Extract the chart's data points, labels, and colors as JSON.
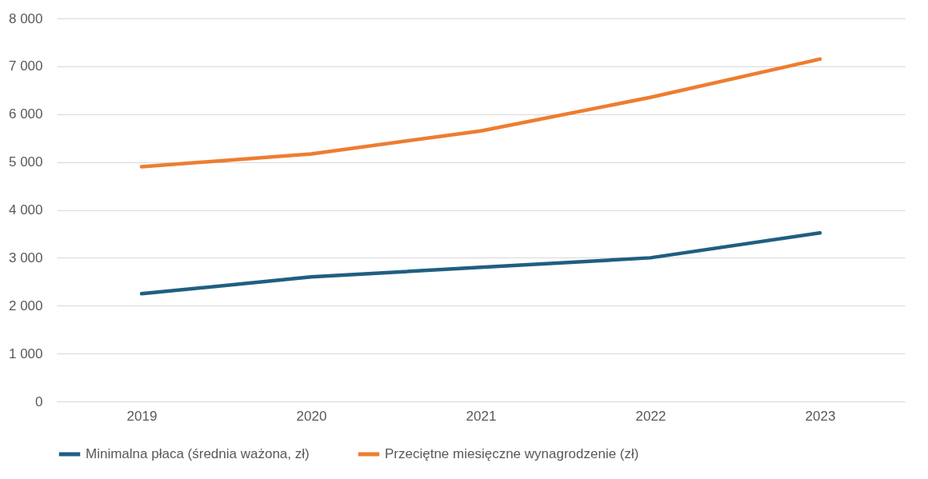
{
  "chart_data": {
    "type": "line",
    "categories": [
      "2019",
      "2020",
      "2021",
      "2022",
      "2023"
    ],
    "series": [
      {
        "name": "Minimalna płaca (średnia ważona, zł)",
        "color": "#1f5f80",
        "values": [
          2250,
          2600,
          2800,
          3000,
          3520
        ]
      },
      {
        "name": "Przeciętne miesięczne wynagrodzenie (zł)",
        "color": "#ed7d31",
        "values": [
          4900,
          5170,
          5650,
          6350,
          7150
        ]
      }
    ],
    "ylim": [
      0,
      8000
    ],
    "yticks": [
      0,
      {
        "value": 1000,
        "label": "1 000"
      },
      {
        "value": 2000,
        "label": "2 000"
      },
      {
        "value": 3000,
        "label": "3 000"
      },
      {
        "value": 4000,
        "label": "4 000"
      },
      {
        "value": 5000,
        "label": "5 000"
      },
      {
        "value": 6000,
        "label": "6 000"
      },
      {
        "value": 7000,
        "label": "7 000"
      },
      {
        "value": 8000,
        "label": "8 000"
      }
    ],
    "grid": "y",
    "legend": "bottom",
    "marker": "none",
    "line_style": "solid"
  }
}
